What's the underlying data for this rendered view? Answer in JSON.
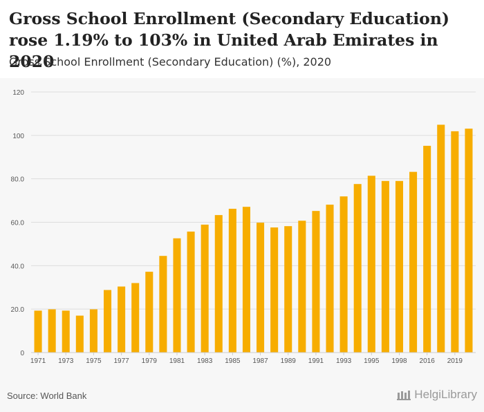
{
  "title": "Gross School Enrollment (Secondary Education) rose 1.19% to 103% in United Arab Emirates in 2020",
  "subtitle": "Gross School Enrollment (Secondary Education) (%), 2020",
  "source": "Source: World Bank",
  "brand": "HelgiLibrary",
  "colors": {
    "bar": "#f7ad00",
    "grid": "#dddddd",
    "axis": "#555555",
    "background": "#f7f7f7"
  },
  "chart_data": {
    "type": "bar",
    "categories": [
      "1971",
      "1972",
      "1973",
      "1974",
      "1975",
      "1976",
      "1977",
      "1978",
      "1979",
      "1980",
      "1981",
      "1982",
      "1983",
      "1984",
      "1985",
      "1986",
      "1987",
      "1988",
      "1989",
      "1990",
      "1991",
      "1992",
      "1993",
      "1994",
      "1995",
      "1996",
      "1998",
      "1999",
      "2016",
      "2017",
      "2019",
      "2020"
    ],
    "tick_labels": [
      "1971",
      "1973",
      "1975",
      "1977",
      "1979",
      "1981",
      "1983",
      "1985",
      "1987",
      "1989",
      "1991",
      "1993",
      "1995",
      "1998",
      "2016",
      "2019"
    ],
    "values": [
      19.3,
      19.9,
      19.3,
      17.0,
      19.9,
      28.8,
      30.4,
      32.0,
      37.2,
      44.5,
      52.6,
      55.7,
      58.9,
      63.3,
      66.2,
      67.1,
      59.8,
      57.6,
      58.2,
      60.7,
      65.2,
      68.1,
      71.9,
      77.6,
      81.4,
      79.0,
      79.0,
      83.2,
      95.2,
      104.9,
      101.9,
      103.1
    ],
    "yticks": [
      0,
      20,
      40,
      60,
      80,
      100,
      120
    ],
    "ytick_labels": [
      "0",
      "20.0",
      "40.0",
      "60.0",
      "80.0",
      "100",
      "120"
    ],
    "ylim": [
      0,
      120
    ],
    "grid": true
  }
}
